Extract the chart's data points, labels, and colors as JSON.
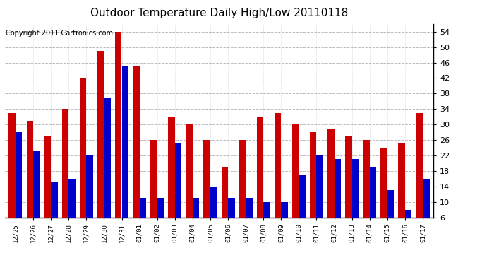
{
  "title": "Outdoor Temperature Daily High/Low 20110118",
  "copyright": "Copyright 2011 Cartronics.com",
  "dates": [
    "12/25",
    "12/26",
    "12/27",
    "12/28",
    "12/29",
    "12/30",
    "12/31",
    "01/01",
    "01/02",
    "01/03",
    "01/04",
    "01/05",
    "01/06",
    "01/07",
    "01/08",
    "01/09",
    "01/10",
    "01/11",
    "01/12",
    "01/13",
    "01/14",
    "01/15",
    "01/16",
    "01/17"
  ],
  "highs": [
    33,
    31,
    27,
    34,
    42,
    49,
    54,
    45,
    26,
    32,
    30,
    26,
    19,
    26,
    32,
    33,
    30,
    28,
    29,
    27,
    26,
    24,
    25,
    33
  ],
  "lows": [
    28,
    23,
    15,
    16,
    22,
    37,
    45,
    11,
    11,
    25,
    11,
    14,
    11,
    11,
    10,
    10,
    17,
    22,
    21,
    21,
    19,
    13,
    8,
    16
  ],
  "high_color": "#cc0000",
  "low_color": "#0000cc",
  "bg_color": "#ffffff",
  "plot_bg_color": "#ffffff",
  "grid_color": "#bbbbbb",
  "ylim_min": 6.0,
  "ylim_max": 56.0,
  "yticks": [
    6.0,
    10.0,
    14.0,
    18.0,
    22.0,
    26.0,
    30.0,
    34.0,
    38.0,
    42.0,
    46.0,
    50.0,
    54.0
  ],
  "title_fontsize": 11,
  "copyright_fontsize": 7,
  "bar_width": 0.38
}
